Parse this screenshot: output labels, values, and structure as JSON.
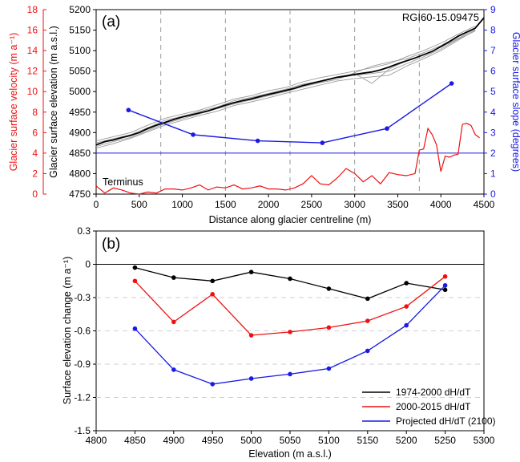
{
  "colors": {
    "black": "#000000",
    "red": "#ee1111",
    "blue": "#1a1ae6",
    "grey_line": "#9a9a9a",
    "grid": "#9a9a9a"
  },
  "chart_data": [
    {
      "id": "a",
      "type": "line",
      "panel_label": "(a)",
      "annotation": "RGI60-15.09475",
      "terminus_label": "Terminus",
      "xlabel": "Distance along glacier centreline (m)",
      "ylabel_left_outer": "Glacier surface velocity (m a⁻¹)",
      "ylabel_left_inner": "Glacier surface elevation (m a.s.l.)",
      "ylabel_right": "Glacier surface slope (degrees)",
      "xlim": [
        0,
        4500
      ],
      "x_ticks": [
        "0",
        "500",
        "1000",
        "1500",
        "2000",
        "2500",
        "3000",
        "3500",
        "4000",
        "4500"
      ],
      "elev_lim": [
        4750,
        5200
      ],
      "elev_ticks": [
        "4750",
        "4800",
        "4850",
        "4900",
        "4950",
        "5000",
        "5050",
        "5100",
        "5150",
        "5200"
      ],
      "vel_lim": [
        0,
        18
      ],
      "vel_ticks": [
        "0",
        "2",
        "4",
        "6",
        "8",
        "10",
        "12",
        "14",
        "16",
        "18"
      ],
      "slope_lim": [
        0,
        9
      ],
      "slope_ticks": [
        "0",
        "1",
        "2",
        "3",
        "4",
        "5",
        "6",
        "7",
        "8",
        "9"
      ],
      "vertical_dashed_lines_x": [
        750,
        1500,
        2250,
        3000,
        3750
      ],
      "slope_reference_line": 2,
      "elevation_mean": {
        "x": [
          0,
          100,
          200,
          300,
          400,
          500,
          600,
          700,
          800,
          900,
          1000,
          1100,
          1200,
          1300,
          1400,
          1500,
          1600,
          1700,
          1800,
          1900,
          2000,
          2100,
          2200,
          2300,
          2400,
          2500,
          2600,
          2700,
          2800,
          2900,
          3000,
          3100,
          3200,
          3300,
          3400,
          3500,
          3600,
          3700,
          3800,
          3900,
          4000,
          4100,
          4200,
          4300,
          4400,
          4500
        ],
        "y": [
          4870,
          4878,
          4882,
          4888,
          4893,
          4900,
          4910,
          4918,
          4925,
          4932,
          4938,
          4943,
          4948,
          4953,
          4960,
          4967,
          4973,
          4978,
          4982,
          4988,
          4993,
          4998,
          5003,
          5008,
          5015,
          5020,
          5025,
          5030,
          5035,
          5038,
          5042,
          5045,
          5048,
          5053,
          5060,
          5068,
          5075,
          5082,
          5090,
          5098,
          5110,
          5122,
          5135,
          5145,
          5155,
          5180
        ]
      },
      "elevation_profiles": [
        {
          "x": [
            0,
            200,
            400,
            600,
            800,
            1000,
            1200,
            1400,
            1600,
            1800,
            2000,
            2200,
            2400,
            2600,
            2800,
            3000,
            3200,
            3400,
            3600,
            3800,
            4000,
            4200,
            4400
          ],
          "y": [
            4880,
            4890,
            4900,
            4918,
            4935,
            4945,
            4955,
            4968,
            4982,
            4990,
            5002,
            5010,
            5024,
            5034,
            5042,
            5050,
            5058,
            5068,
            5085,
            5100,
            5118,
            5140,
            5160
          ]
        },
        {
          "x": [
            0,
            200,
            400,
            600,
            800,
            1000,
            1200,
            1400,
            1600,
            1800,
            2000,
            2200,
            2400,
            2600,
            2800,
            3000,
            3200,
            3400,
            3600,
            3800,
            4000,
            4200,
            4400
          ],
          "y": [
            4862,
            4873,
            4886,
            4902,
            4918,
            4930,
            4942,
            4952,
            4966,
            4975,
            4985,
            4996,
            5006,
            5016,
            5026,
            5032,
            5036,
            5040,
            5062,
            5080,
            5100,
            5125,
            5150
          ]
        },
        {
          "x": [
            0,
            200,
            400,
            600,
            800,
            1000,
            1200,
            1400,
            1600,
            1800,
            2000,
            2200,
            2400,
            2600,
            2800,
            3000,
            3200,
            3400,
            3600,
            3800,
            4000,
            4200,
            4400
          ],
          "y": [
            4875,
            4885,
            4895,
            4912,
            4930,
            4940,
            4952,
            4962,
            4978,
            4986,
            4996,
            5006,
            5018,
            5026,
            5036,
            5044,
            5020,
            5055,
            5075,
            5090,
            5108,
            5130,
            5152
          ]
        },
        {
          "x": [
            0,
            200,
            400,
            600,
            800,
            1000,
            1200,
            1400,
            1600,
            1800,
            2000,
            2200,
            2400,
            2600,
            2800,
            3000,
            3200,
            3400,
            3600,
            3800,
            4000,
            4200,
            4400
          ],
          "y": [
            4866,
            4878,
            4888,
            4905,
            4922,
            4934,
            4946,
            4958,
            4970,
            4980,
            4990,
            5000,
            5012,
            5022,
            5030,
            5046,
            5062,
            5072,
            5080,
            5095,
            5112,
            5135,
            5155
          ]
        },
        {
          "x": [
            0,
            200,
            400,
            600,
            800,
            1000,
            1200,
            1400,
            1600,
            1800,
            2000,
            2200,
            2400,
            2600,
            2800,
            3000,
            3200,
            3400,
            3600,
            3800,
            4000,
            4200,
            4400
          ],
          "y": [
            4872,
            4882,
            4893,
            4908,
            4926,
            4938,
            4948,
            4960,
            4974,
            4984,
            4994,
            5004,
            5014,
            5024,
            5034,
            5040,
            5044,
            5050,
            5068,
            5085,
            5104,
            5128,
            5148
          ]
        }
      ],
      "velocity": {
        "x": [
          0,
          100,
          200,
          300,
          400,
          500,
          600,
          700,
          800,
          900,
          1000,
          1100,
          1200,
          1300,
          1400,
          1500,
          1600,
          1700,
          1800,
          1900,
          2000,
          2100,
          2200,
          2300,
          2400,
          2500,
          2600,
          2700,
          2800,
          2900,
          3000,
          3100,
          3200,
          3300,
          3400,
          3500,
          3600,
          3700,
          3750,
          3800,
          3850,
          3900,
          3950,
          4000,
          4050,
          4100,
          4150,
          4200,
          4250,
          4300,
          4350,
          4400,
          4450
        ],
        "y": [
          0.8,
          0.1,
          0.6,
          0.4,
          0.1,
          0.0,
          0.2,
          0.1,
          0.5,
          0.5,
          0.4,
          0.6,
          0.9,
          0.4,
          0.7,
          0.6,
          0.9,
          0.5,
          0.6,
          0.8,
          0.5,
          0.5,
          0.4,
          0.6,
          1.0,
          1.8,
          1.0,
          0.9,
          1.6,
          2.5,
          2.0,
          1.2,
          1.8,
          1.0,
          2.1,
          1.9,
          1.8,
          2.0,
          4.3,
          4.4,
          6.4,
          5.8,
          4.8,
          2.2,
          3.7,
          3.6,
          3.8,
          3.9,
          6.8,
          6.9,
          6.7,
          5.8,
          5.5
        ]
      },
      "slope": {
        "x": [
          375,
          1125,
          1875,
          2625,
          3375,
          4125
        ],
        "y": [
          4.1,
          2.9,
          2.6,
          2.5,
          3.2,
          5.4
        ]
      }
    },
    {
      "id": "b",
      "type": "line",
      "panel_label": "(b)",
      "xlabel": "Elevation (m a.s.l.)",
      "ylabel": "Surface elevation change (m a⁻¹)",
      "xlim": [
        4800,
        5300
      ],
      "x_ticks": [
        "4800",
        "4850",
        "4900",
        "4950",
        "5000",
        "5050",
        "5100",
        "5150",
        "5200",
        "5250",
        "5300"
      ],
      "ylim": [
        -1.5,
        0.3
      ],
      "y_ticks": [
        "-1.5",
        "-1.2",
        "-0.9",
        "-0.6",
        "-0.3",
        "0",
        "0.3"
      ],
      "legend_position": "bottom-right",
      "series": [
        {
          "name": "1974-2000 dH/dT",
          "color": "#000000",
          "x": [
            4850,
            4900,
            4950,
            5000,
            5050,
            5100,
            5150,
            5200,
            5250
          ],
          "values": [
            -0.03,
            -0.12,
            -0.15,
            -0.07,
            -0.13,
            -0.22,
            -0.31,
            -0.17,
            -0.23
          ]
        },
        {
          "name": "2000-2015 dH/dT",
          "color": "#ee1111",
          "x": [
            4850,
            4900,
            4950,
            5000,
            5050,
            5100,
            5150,
            5200,
            5250
          ],
          "values": [
            -0.15,
            -0.52,
            -0.27,
            -0.64,
            -0.61,
            -0.57,
            -0.51,
            -0.38,
            -0.11
          ]
        },
        {
          "name": "Projected dH/dT (2100)",
          "color": "#1a1ae6",
          "x": [
            4850,
            4900,
            4950,
            5000,
            5050,
            5100,
            5150,
            5200,
            5250
          ],
          "values": [
            -0.58,
            -0.95,
            -1.08,
            -1.03,
            -0.99,
            -0.94,
            -0.78,
            -0.55,
            -0.19
          ]
        }
      ]
    }
  ]
}
